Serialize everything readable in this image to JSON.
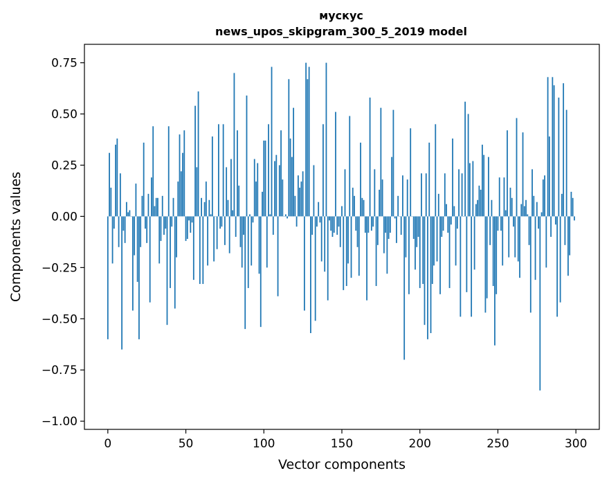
{
  "chart_data": {
    "type": "bar",
    "title": "мускус",
    "subtitle": "news_upos_skipgram_300_5_2019 model",
    "xlabel": "Vector components",
    "ylabel": "Components values",
    "xlim": [
      -15,
      315
    ],
    "ylim": [
      -1.04,
      0.84
    ],
    "xticks": [
      0,
      50,
      100,
      150,
      200,
      250,
      300
    ],
    "xtick_labels": [
      "0",
      "50",
      "100",
      "150",
      "200",
      "250",
      "300"
    ],
    "yticks": [
      0.75,
      0.5,
      0.25,
      0.0,
      -0.25,
      -0.5,
      -0.75,
      -1.0
    ],
    "ytick_labels": [
      "0.75",
      "0.50",
      "0.25",
      "0.00",
      "−0.25",
      "−0.50",
      "−0.75",
      "−1.00"
    ],
    "bar_color": "#1f77b4",
    "grid": false,
    "values": [
      -0.6,
      0.31,
      0.14,
      -0.23,
      -0.06,
      0.35,
      0.38,
      -0.15,
      0.21,
      -0.65,
      -0.07,
      -0.13,
      0.07,
      0.02,
      0.03,
      0.0,
      -0.46,
      -0.19,
      0.16,
      -0.32,
      -0.6,
      -0.15,
      0.1,
      0.36,
      -0.06,
      -0.13,
      0.11,
      -0.42,
      0.19,
      0.44,
      0.05,
      0.09,
      0.09,
      -0.23,
      -0.12,
      0.1,
      -0.09,
      -0.06,
      -0.53,
      0.44,
      -0.35,
      -0.05,
      0.09,
      -0.45,
      -0.2,
      0.17,
      0.4,
      0.22,
      0.31,
      0.42,
      -0.12,
      -0.11,
      -0.02,
      -0.08,
      -0.03,
      -0.31,
      0.54,
      0.24,
      0.61,
      -0.33,
      0.09,
      -0.33,
      0.07,
      0.17,
      -0.24,
      0.08,
      0.01,
      0.39,
      -0.22,
      0.0,
      -0.16,
      0.45,
      -0.06,
      -0.05,
      0.45,
      -0.14,
      0.24,
      0.08,
      -0.18,
      0.28,
      0.03,
      0.7,
      -0.1,
      0.42,
      0.15,
      -0.15,
      -0.25,
      -0.09,
      -0.55,
      0.59,
      -0.35,
      0.01,
      -0.24,
      -0.03,
      0.28,
      0.17,
      0.26,
      -0.28,
      -0.54,
      0.12,
      0.37,
      0.37,
      -0.25,
      0.45,
      0.01,
      0.73,
      -0.09,
      0.27,
      0.3,
      -0.39,
      0.25,
      0.42,
      0.18,
      0.0,
      0.01,
      -0.01,
      0.67,
      0.38,
      0.29,
      0.53,
      0.1,
      -0.05,
      0.2,
      0.14,
      0.17,
      0.22,
      -0.46,
      0.75,
      0.67,
      0.73,
      -0.57,
      -0.09,
      0.25,
      -0.51,
      -0.05,
      0.07,
      -0.03,
      -0.22,
      0.45,
      -0.27,
      0.75,
      -0.41,
      -0.02,
      -0.07,
      -0.1,
      -0.08,
      0.51,
      -0.09,
      -0.05,
      -0.15,
      0.05,
      -0.36,
      0.23,
      -0.34,
      -0.23,
      0.49,
      -0.3,
      0.14,
      0.1,
      -0.07,
      -0.15,
      -0.29,
      0.36,
      0.09,
      0.08,
      -0.08,
      -0.41,
      -0.08,
      0.58,
      -0.07,
      -0.05,
      0.23,
      -0.34,
      -0.14,
      0.13,
      0.53,
      0.18,
      -0.18,
      -0.08,
      -0.28,
      -0.11,
      -0.08,
      0.29,
      0.52,
      -0.01,
      -0.13,
      0.1,
      0.0,
      -0.09,
      0.2,
      -0.7,
      -0.2,
      0.18,
      -0.38,
      0.43,
      0.0,
      -0.11,
      -0.26,
      -0.15,
      -0.1,
      -0.35,
      0.21,
      -0.33,
      -0.53,
      0.21,
      -0.6,
      0.36,
      -0.57,
      -0.33,
      -0.24,
      0.45,
      -0.22,
      0.11,
      -0.38,
      -0.1,
      -0.07,
      0.21,
      0.06,
      -0.08,
      -0.35,
      -0.04,
      0.38,
      0.05,
      -0.24,
      -0.06,
      0.23,
      -0.49,
      0.21,
      0.0,
      0.56,
      -0.37,
      0.5,
      0.26,
      -0.49,
      0.27,
      -0.26,
      0.06,
      0.08,
      0.15,
      0.13,
      0.35,
      0.3,
      -0.47,
      -0.4,
      0.29,
      -0.14,
      0.08,
      -0.34,
      -0.63,
      -0.38,
      -0.07,
      0.19,
      -0.07,
      -0.24,
      0.19,
      0.03,
      0.42,
      -0.2,
      0.14,
      0.09,
      -0.05,
      -0.2,
      0.48,
      -0.22,
      -0.3,
      0.06,
      0.41,
      0.05,
      0.08,
      0.01,
      -0.14,
      -0.47,
      0.23,
      0.1,
      -0.31,
      0.07,
      -0.06,
      -0.85,
      0.02,
      0.18,
      0.2,
      -0.25,
      0.68,
      0.39,
      -0.1,
      0.68,
      0.64,
      -0.04,
      -0.49,
      0.58,
      -0.42,
      0.11,
      0.65,
      -0.14,
      0.52,
      -0.29,
      -0.19,
      0.12,
      0.09,
      -0.02
    ]
  }
}
